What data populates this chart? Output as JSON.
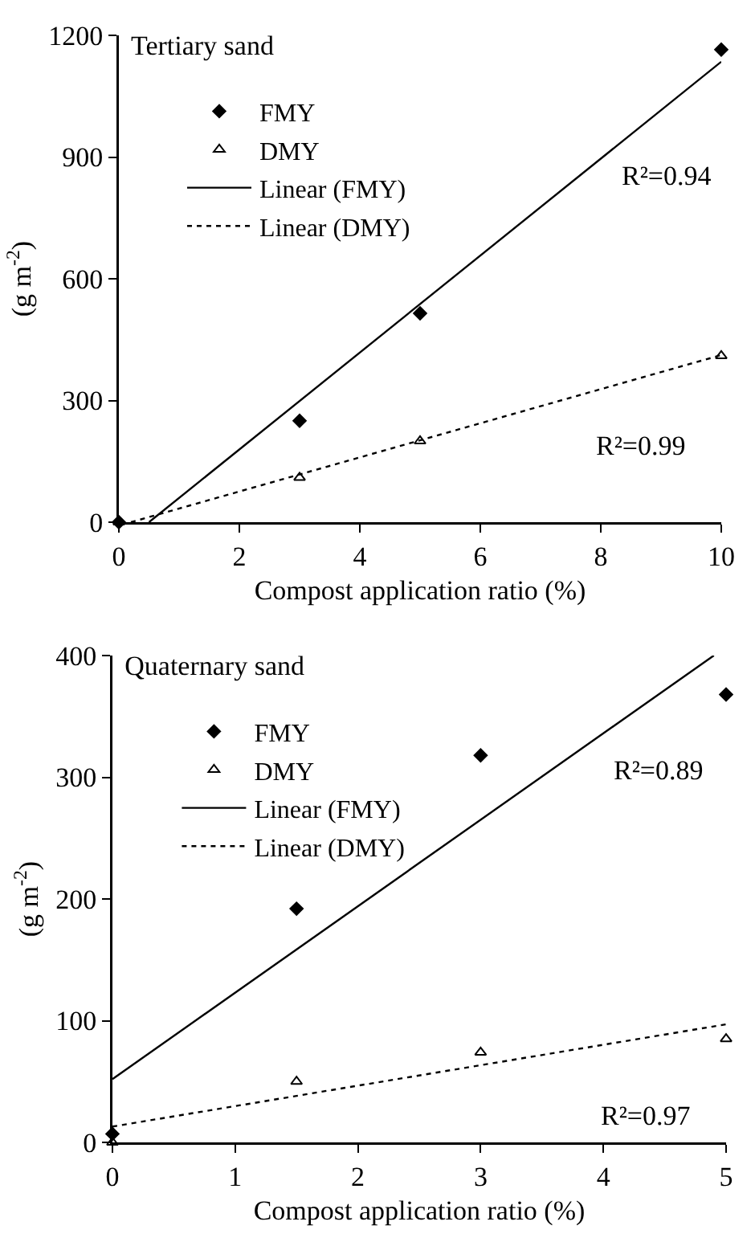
{
  "chart_data": [
    {
      "type": "scatter",
      "title": "Tertiary sand",
      "xlabel": "Compost application ratio (%)",
      "ylabel": "(g m$^{-2}$)",
      "xlim": [
        0,
        10
      ],
      "xticks": [
        0,
        2,
        4,
        6,
        8,
        10
      ],
      "ylim": [
        0,
        1200
      ],
      "yticks": [
        0,
        300,
        600,
        900,
        1200
      ],
      "grid": false,
      "legend": "top left",
      "series": [
        {
          "name": "FMY",
          "type": "scatter",
          "color": "#000000",
          "marker": "diamond",
          "x": [
            0,
            3,
            5,
            10
          ],
          "values": [
            0,
            250,
            515,
            1165
          ]
        },
        {
          "name": "DMY",
          "type": "scatter",
          "color": "#000000",
          "marker": "triangle",
          "x": [
            0,
            3,
            5,
            10
          ],
          "values": [
            0,
            110,
            200,
            410
          ]
        },
        {
          "name": "Linear (FMY)",
          "type": "line",
          "color": "#000000",
          "line_style": "solid",
          "x": [
            0.5,
            10
          ],
          "values": [
            0,
            1135
          ]
        },
        {
          "name": "Linear (DMY)",
          "type": "line",
          "color": "#000000",
          "line_style": "dotted",
          "x": [
            0.2,
            10
          ],
          "values": [
            0,
            412
          ]
        }
      ],
      "annotations": [
        "R²=0.94",
        "R²=0.99"
      ]
    },
    {
      "type": "scatter",
      "title": "Quaternary sand",
      "xlabel": "Compost application ratio (%)",
      "ylabel": "(g m$^{-2}$)",
      "xlim": [
        0,
        5
      ],
      "xticks": [
        0,
        1,
        2,
        3,
        4,
        5
      ],
      "ylim": [
        0,
        400
      ],
      "yticks": [
        0,
        100,
        200,
        300,
        400
      ],
      "grid": false,
      "legend": "top left",
      "series": [
        {
          "name": "FMY",
          "type": "scatter",
          "color": "#000000",
          "marker": "diamond",
          "x": [
            0,
            1.5,
            3,
            5
          ],
          "values": [
            7,
            192,
            318,
            368
          ]
        },
        {
          "name": "DMY",
          "type": "scatter",
          "color": "#000000",
          "marker": "triangle",
          "x": [
            0,
            1.5,
            3,
            5
          ],
          "values": [
            0,
            50,
            74,
            85
          ]
        },
        {
          "name": "Linear (FMY)",
          "type": "line",
          "color": "#000000",
          "line_style": "solid",
          "x": [
            0,
            4.9
          ],
          "values": [
            52,
            400
          ]
        },
        {
          "name": "Linear (DMY)",
          "type": "line",
          "color": "#000000",
          "line_style": "dotted",
          "x": [
            0,
            5
          ],
          "values": [
            13,
            97
          ]
        }
      ],
      "annotations": [
        "R²=0.89",
        "R²=0.97"
      ]
    }
  ]
}
